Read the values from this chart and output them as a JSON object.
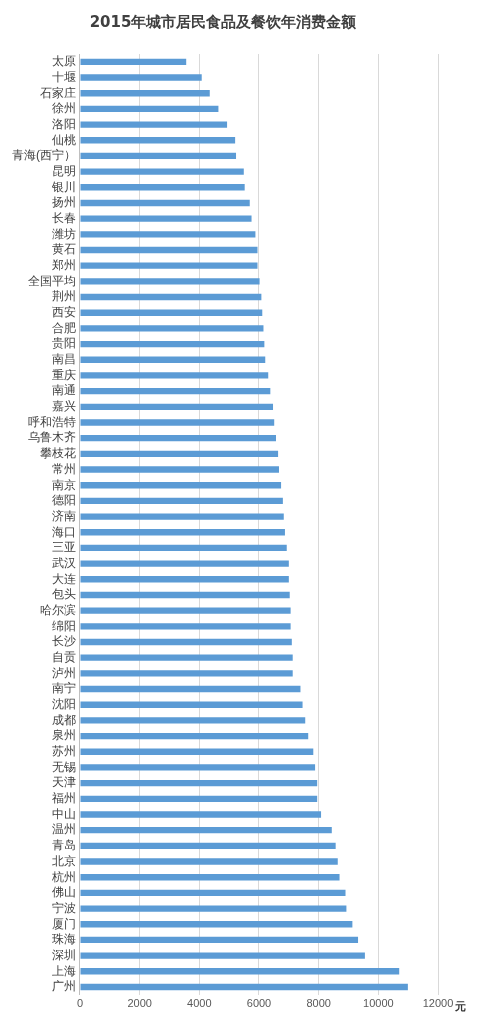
{
  "chart_data": {
    "type": "bar",
    "orientation": "horizontal",
    "title": "2015年城市居民食品及餐饮年消费金额",
    "xlabel": "元",
    "categories": [
      "太原",
      "十堰",
      "石家庄",
      "徐州",
      "洛阳",
      "仙桃",
      "青海(西宁）",
      "昆明",
      "银川",
      "扬州",
      "长春",
      "潍坊",
      "黄石",
      "郑州",
      "全国平均",
      "荆州",
      "西安",
      "合肥",
      "贵阳",
      "南昌",
      "重庆",
      "南通",
      "嘉兴",
      "呼和浩特",
      "乌鲁木齐",
      "攀枝花",
      "常州",
      "南京",
      "德阳",
      "济南",
      "海口",
      "三亚",
      "武汉",
      "大连",
      "包头",
      "哈尔滨",
      "绵阳",
      "长沙",
      "自贡",
      "泸州",
      "南宁",
      "沈阳",
      "成都",
      "泉州",
      "苏州",
      "无锡",
      "天津",
      "福州",
      "中山",
      "温州",
      "青岛",
      "北京",
      "杭州",
      "佛山",
      "宁波",
      "厦门",
      "珠海",
      "深圳",
      "上海",
      "广州"
    ],
    "values": [
      3560,
      4080,
      4350,
      4640,
      4930,
      5200,
      5230,
      5490,
      5520,
      5690,
      5750,
      5880,
      5950,
      5950,
      6020,
      6080,
      6110,
      6150,
      6180,
      6210,
      6310,
      6380,
      6470,
      6510,
      6570,
      6640,
      6670,
      6740,
      6800,
      6830,
      6870,
      6930,
      7000,
      7000,
      7030,
      7060,
      7060,
      7100,
      7130,
      7130,
      7390,
      7460,
      7550,
      7650,
      7820,
      7880,
      7950,
      7950,
      8080,
      8440,
      8570,
      8640,
      8700,
      8900,
      8930,
      9130,
      9320,
      9550,
      10700,
      10990
    ],
    "color": "#5b9bd5",
    "xlim": [
      0,
      12000
    ],
    "xticks": [
      0,
      2000,
      4000,
      6000,
      8000,
      10000,
      12000
    ],
    "grid": "x",
    "legend": false
  }
}
